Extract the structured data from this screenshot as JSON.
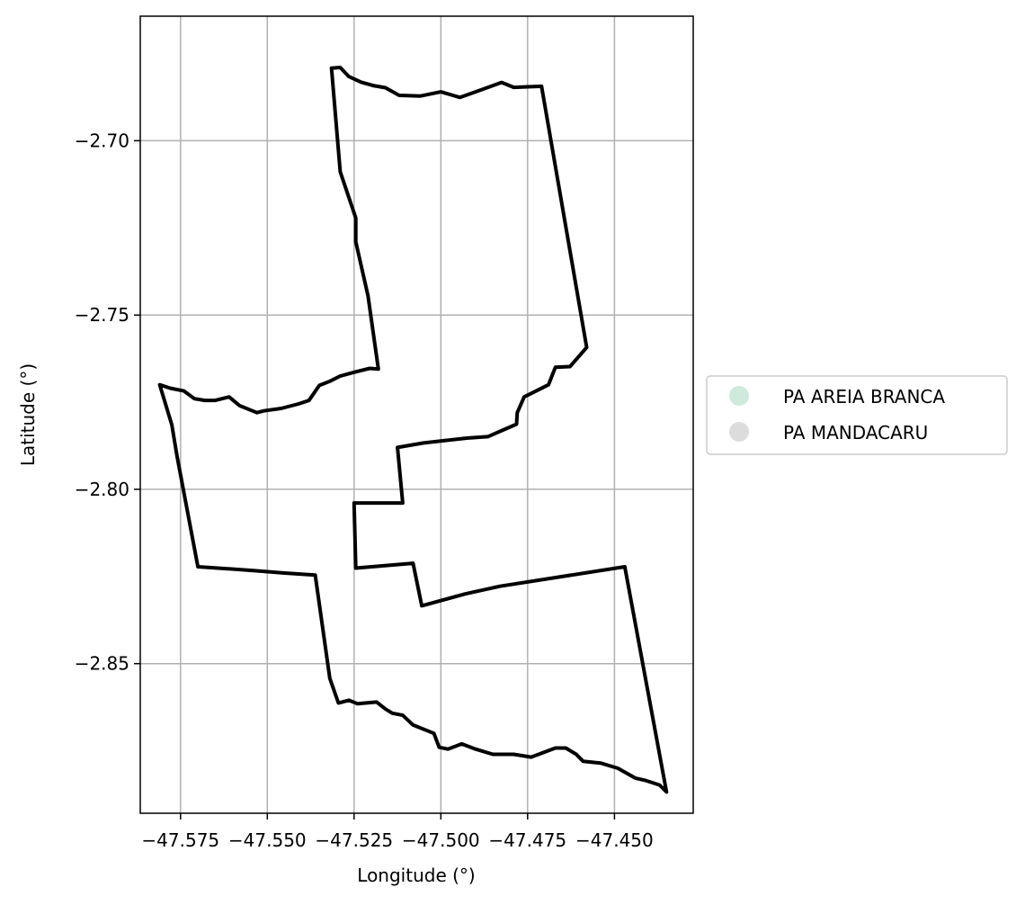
{
  "chart_data": {
    "type": "map",
    "title": "",
    "xlabel": "Longitude (°)",
    "ylabel": "Latitude (°)",
    "xlim": [
      -47.5866,
      -47.4273
    ],
    "ylim": [
      -2.8929,
      -2.6643
    ],
    "x_ticks": [
      -47.575,
      -47.55,
      -47.525,
      -47.5,
      -47.475,
      -47.45
    ],
    "x_tick_labels": [
      "−47.575",
      "−47.550",
      "−47.525",
      "−47.500",
      "−47.475",
      "−47.450"
    ],
    "y_ticks": [
      -2.7,
      -2.75,
      -2.8,
      -2.85
    ],
    "y_tick_labels": [
      "−2.70",
      "−2.75",
      "−2.80",
      "−2.85"
    ],
    "grid": true,
    "legend_position": "right",
    "legend": [
      {
        "label": "PA AREIA BRANCA",
        "color": "#cdeadc"
      },
      {
        "label": "PA MANDACARU",
        "color": "#dcdcdc"
      }
    ],
    "boundaries": [
      {
        "name": "PA AREIA BRANCA",
        "stroke": "#000000",
        "points": [
          [
            -47.5315,
            -2.6792
          ],
          [
            -47.529,
            -2.679
          ],
          [
            -47.5265,
            -2.6816
          ],
          [
            -47.523,
            -2.6832
          ],
          [
            -47.5195,
            -2.6842
          ],
          [
            -47.516,
            -2.6848
          ],
          [
            -47.512,
            -2.687
          ],
          [
            -47.506,
            -2.6872
          ],
          [
            -47.5,
            -2.686
          ],
          [
            -47.4945,
            -2.6876
          ],
          [
            -47.49,
            -2.686
          ],
          [
            -47.4825,
            -2.6833
          ],
          [
            -47.479,
            -2.6847
          ],
          [
            -47.471,
            -2.6844
          ],
          [
            -47.458,
            -2.7593
          ],
          [
            -47.4628,
            -2.7648
          ],
          [
            -47.467,
            -2.765
          ],
          [
            -47.469,
            -2.77
          ],
          [
            -47.473,
            -2.772
          ],
          [
            -47.476,
            -2.7735
          ],
          [
            -47.478,
            -2.778
          ],
          [
            -47.4782,
            -2.7813
          ],
          [
            -47.4865,
            -2.7849
          ],
          [
            -47.4925,
            -2.7853
          ],
          [
            -47.505,
            -2.7867
          ],
          [
            -47.5125,
            -2.788
          ],
          [
            -47.511,
            -2.8039
          ],
          [
            -47.525,
            -2.8039
          ],
          [
            -47.5245,
            -2.8226
          ],
          [
            -47.508,
            -2.8212
          ],
          [
            -47.5055,
            -2.8334
          ],
          [
            -47.493,
            -2.83
          ],
          [
            -47.483,
            -2.8278
          ],
          [
            -47.447,
            -2.8222
          ],
          [
            -47.435,
            -2.8868
          ],
          [
            -47.437,
            -2.8848
          ],
          [
            -47.441,
            -2.8835
          ],
          [
            -47.444,
            -2.8828
          ],
          [
            -47.449,
            -2.88
          ],
          [
            -47.454,
            -2.8785
          ],
          [
            -47.459,
            -2.878
          ],
          [
            -47.461,
            -2.876
          ],
          [
            -47.464,
            -2.8742
          ],
          [
            -47.467,
            -2.8742
          ],
          [
            -47.474,
            -2.8768
          ],
          [
            -47.479,
            -2.876
          ],
          [
            -47.485,
            -2.876
          ],
          [
            -47.49,
            -2.8745
          ],
          [
            -47.494,
            -2.873
          ],
          [
            -47.498,
            -2.8745
          ],
          [
            -47.5005,
            -2.874
          ],
          [
            -47.502,
            -2.87
          ],
          [
            -47.508,
            -2.8676
          ],
          [
            -47.511,
            -2.8648
          ],
          [
            -47.514,
            -2.8642
          ],
          [
            -47.516,
            -2.863
          ],
          [
            -47.5185,
            -2.861
          ],
          [
            -47.524,
            -2.8615
          ],
          [
            -47.5265,
            -2.8605
          ],
          [
            -47.5295,
            -2.8613
          ],
          [
            -47.532,
            -2.8542
          ],
          [
            -47.5362,
            -2.8246
          ],
          [
            -47.545,
            -2.824
          ],
          [
            -47.554,
            -2.8233
          ],
          [
            -47.57,
            -2.8222
          ],
          [
            -47.576,
            -2.7905
          ],
          [
            -47.5775,
            -2.7815
          ],
          [
            -47.581,
            -2.77
          ],
          [
            -47.578,
            -2.771
          ],
          [
            -47.574,
            -2.7718
          ],
          [
            -47.571,
            -2.774
          ],
          [
            -47.568,
            -2.7745
          ],
          [
            -47.565,
            -2.7745
          ],
          [
            -47.561,
            -2.7735
          ],
          [
            -47.558,
            -2.776
          ],
          [
            -47.553,
            -2.778
          ],
          [
            -47.551,
            -2.7775
          ],
          [
            -47.546,
            -2.7768
          ],
          [
            -47.541,
            -2.7755
          ],
          [
            -47.538,
            -2.7745
          ],
          [
            -47.535,
            -2.7702
          ],
          [
            -47.532,
            -2.769
          ],
          [
            -47.529,
            -2.7675
          ],
          [
            -47.5245,
            -2.7663
          ],
          [
            -47.5205,
            -2.7653
          ],
          [
            -47.518,
            -2.7655
          ],
          [
            -47.521,
            -2.7445
          ],
          [
            -47.5245,
            -2.729
          ],
          [
            -47.5245,
            -2.7222
          ],
          [
            -47.529,
            -2.7089
          ],
          [
            -47.5315,
            -2.6792
          ]
        ]
      }
    ]
  }
}
